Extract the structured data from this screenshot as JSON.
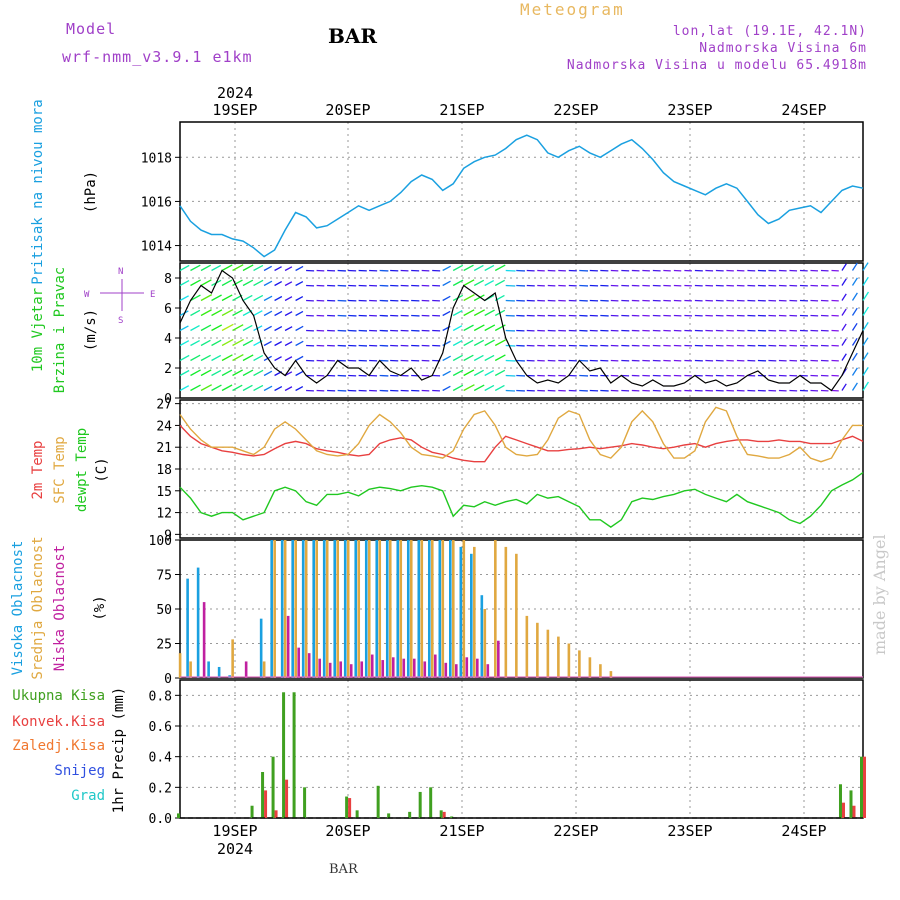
{
  "header": {
    "model_label": "Model",
    "model_name": "wrf-nmm_v3.9.1 e1km",
    "station": "BAR",
    "meteogram": "Meteogram",
    "lonlat": "lon,lat (19.1E, 42.1N)",
    "elevation": "Nadmorska Visina 6m",
    "model_elevation": "Nadmorska Visina u modelu 65.4918m"
  },
  "footer": {
    "station": "BAR",
    "credit": "made by Angel"
  },
  "colors": {
    "pressure": "#1aa0e0",
    "temp2m": "#e84040",
    "sfc": "#e0a840",
    "dewpt": "#20c820",
    "high_cloud": "#1aa0e0",
    "mid_cloud": "#e0a840",
    "low_cloud": "#c020a0",
    "total_precip": "#40a020",
    "convective": "#e84040",
    "frozen": "#f07830",
    "snow": "#3050e0",
    "graupel": "#20c8c8",
    "purple": "#a040c8"
  },
  "chart_data": [
    {
      "type": "line",
      "panel": "pressure",
      "ylabel": [
        "Pritisak na nivou mora",
        "(hPa)"
      ],
      "yticks": [
        1014,
        1016,
        1018
      ],
      "ylim": [
        1013.3,
        1019.6
      ],
      "x_start": "2024-09-18 12:00",
      "x_step_hours": 3,
      "series": [
        {
          "values": [
            1015.8,
            1015.1,
            1014.7,
            1014.5,
            1014.5,
            1014.3,
            1014.2,
            1013.9,
            1013.5,
            1013.8,
            1014.7,
            1015.5,
            1015.3,
            1014.8,
            1014.9,
            1015.2,
            1015.5,
            1015.8,
            1015.6,
            1015.8,
            1016.0,
            1016.4,
            1016.9,
            1017.2,
            1017.0,
            1016.5,
            1016.8,
            1017.5,
            1017.8,
            1018.0,
            1018.1,
            1018.4,
            1018.8,
            1019.0,
            1018.8,
            1018.2,
            1018.0,
            1018.3,
            1018.5,
            1018.2,
            1018.0,
            1018.3,
            1018.6,
            1018.8,
            1018.4,
            1017.9,
            1017.3,
            1016.9,
            1016.7,
            1016.5,
            1016.3,
            1016.6,
            1016.8,
            1016.6,
            1016.0,
            1015.4,
            1015.0,
            1015.2,
            1015.6,
            1015.7,
            1015.8,
            1015.5,
            1016.0,
            1016.5,
            1016.7,
            1016.6
          ]
        }
      ]
    },
    {
      "type": "line",
      "panel": "wind",
      "ylabel": [
        "10m Vjetar",
        "Brzina i Pravac",
        "(m/s)"
      ],
      "compass": {
        "north": "N",
        "south": "S",
        "west": "W",
        "east": "E"
      },
      "yticks": [
        0,
        2,
        4,
        6,
        8
      ],
      "ylim": [
        0,
        9
      ],
      "series": [
        {
          "name": "10m wind speed",
          "values": [
            5.0,
            6.5,
            7.5,
            7.0,
            8.5,
            8.0,
            6.5,
            5.5,
            3.0,
            2.0,
            1.5,
            2.5,
            1.5,
            1.0,
            1.5,
            2.5,
            2.0,
            2.0,
            1.5,
            2.5,
            1.8,
            1.5,
            2.0,
            1.2,
            1.5,
            3.0,
            6.0,
            7.5,
            7.0,
            6.5,
            7.0,
            4.0,
            2.5,
            1.5,
            1.0,
            1.2,
            1.0,
            1.5,
            2.5,
            1.8,
            2.0,
            1.0,
            1.5,
            1.0,
            0.8,
            1.2,
            0.8,
            0.8,
            1.0,
            1.5,
            1.0,
            1.2,
            0.8,
            1.0,
            1.5,
            1.8,
            1.2,
            1.0,
            1.0,
            1.5,
            1.0,
            1.0,
            0.5,
            1.5,
            3.0,
            4.5
          ]
        }
      ]
    },
    {
      "type": "line",
      "panel": "temperature",
      "ylabel": [
        "2m Temp",
        "SFC Temp",
        "dewpt Temp",
        "(C)"
      ],
      "yticks": [
        9,
        12,
        15,
        18,
        21,
        24,
        27
      ],
      "ylim": [
        8.5,
        27.5
      ],
      "series": [
        {
          "name": "2m Temp",
          "values": [
            24.0,
            22.5,
            21.5,
            21.0,
            20.5,
            20.3,
            20.0,
            19.8,
            20.0,
            20.8,
            21.5,
            21.8,
            21.5,
            20.8,
            20.5,
            20.3,
            20.0,
            19.8,
            20.0,
            21.5,
            22.0,
            22.3,
            22.0,
            21.0,
            20.3,
            20.0,
            19.5,
            19.2,
            19.0,
            19.0,
            21.0,
            22.5,
            22.0,
            21.5,
            21.0,
            20.5,
            20.5,
            20.7,
            20.8,
            21.0,
            20.8,
            21.0,
            21.2,
            21.5,
            21.3,
            21.0,
            20.8,
            21.0,
            21.3,
            21.5,
            21.0,
            21.5,
            21.8,
            22.0,
            22.0,
            21.8,
            21.8,
            22.0,
            21.8,
            21.8,
            21.5,
            21.5,
            21.5,
            22.0,
            22.5,
            21.8
          ]
        },
        {
          "name": "SFC Temp",
          "values": [
            25.5,
            23.5,
            22.0,
            21.0,
            21.0,
            21.0,
            20.5,
            20.0,
            21.0,
            23.5,
            24.5,
            23.5,
            22.0,
            20.5,
            20.0,
            19.8,
            20.0,
            21.5,
            24.0,
            25.5,
            24.5,
            23.0,
            21.0,
            20.0,
            19.8,
            19.5,
            20.5,
            23.5,
            25.5,
            26.0,
            24.0,
            21.0,
            20.0,
            19.8,
            20.0,
            22.0,
            25.0,
            26.0,
            25.5,
            22.0,
            20.0,
            19.5,
            21.0,
            24.5,
            26.0,
            24.5,
            21.5,
            19.5,
            19.5,
            20.5,
            24.5,
            26.5,
            26.0,
            22.5,
            20.0,
            19.8,
            19.5,
            19.5,
            20.0,
            21.0,
            19.5,
            19.0,
            19.5,
            22.0,
            24.0,
            24.0
          ]
        },
        {
          "name": "dewpt Temp",
          "values": [
            15.5,
            14.0,
            12.0,
            11.5,
            12.0,
            12.0,
            11.0,
            11.5,
            12.0,
            15.0,
            15.5,
            15.0,
            13.5,
            13.0,
            14.5,
            14.5,
            14.8,
            14.3,
            15.2,
            15.5,
            15.3,
            15.0,
            15.5,
            15.7,
            15.5,
            15.0,
            11.5,
            13.0,
            12.8,
            13.5,
            13.0,
            13.5,
            13.8,
            13.2,
            14.5,
            14.0,
            14.2,
            13.5,
            12.8,
            11.0,
            11.0,
            10.0,
            11.0,
            13.5,
            14.0,
            13.8,
            14.2,
            14.5,
            15.0,
            15.2,
            14.5,
            14.0,
            13.5,
            14.5,
            13.5,
            13.0,
            12.5,
            12.0,
            11.0,
            10.5,
            11.5,
            13.0,
            15.0,
            15.8,
            16.5,
            17.5
          ]
        }
      ]
    },
    {
      "type": "bar",
      "panel": "cloud",
      "ylabel": [
        "Visoka Oblacnost",
        "Srednja Oblacnost",
        "Niska Oblacnost",
        "(%)"
      ],
      "yticks": [
        0,
        25,
        50,
        75,
        100
      ],
      "ylim": [
        0,
        100
      ],
      "series": [
        {
          "name": "Visoka Oblacnost",
          "values": [
            0,
            72,
            80,
            12,
            8,
            2,
            0,
            0,
            43,
            100,
            100,
            100,
            100,
            100,
            100,
            100,
            100,
            100,
            100,
            100,
            100,
            100,
            100,
            100,
            100,
            100,
            100,
            95,
            90,
            60,
            0,
            0,
            0,
            0,
            0,
            0,
            0,
            0,
            0,
            0,
            0,
            0,
            0,
            0,
            0,
            0,
            0,
            0,
            0,
            0,
            0,
            0,
            0,
            0,
            0,
            0,
            0,
            0,
            0,
            0,
            0,
            0,
            0,
            0,
            0,
            0
          ]
        },
        {
          "name": "Srednja Oblacnost",
          "values": [
            18,
            12,
            0,
            0,
            0,
            28,
            0,
            0,
            12,
            100,
            100,
            100,
            100,
            100,
            100,
            100,
            100,
            100,
            100,
            100,
            100,
            100,
            100,
            100,
            100,
            100,
            100,
            100,
            95,
            50,
            100,
            95,
            90,
            45,
            40,
            35,
            30,
            25,
            20,
            15,
            10,
            5,
            0,
            0,
            0,
            0,
            0,
            0,
            0,
            0,
            0,
            0,
            0,
            0,
            0,
            0,
            0,
            0,
            0,
            0,
            0,
            0,
            0,
            0,
            0,
            0
          ]
        },
        {
          "name": "Niska Oblacnost",
          "values": [
            0,
            0,
            55,
            0,
            0,
            0,
            12,
            0,
            0,
            0,
            45,
            22,
            18,
            14,
            11,
            12,
            10,
            12,
            17,
            13,
            15,
            14,
            14,
            12,
            17,
            11,
            10,
            15,
            14,
            10,
            27,
            0,
            0,
            0,
            0,
            0,
            0,
            0,
            0,
            0,
            0,
            0,
            0,
            0,
            0,
            0,
            0,
            0,
            0,
            0,
            0,
            0,
            0,
            0,
            0,
            0,
            0,
            0,
            0,
            0,
            0,
            0,
            0,
            0,
            0,
            0
          ]
        }
      ]
    },
    {
      "type": "bar",
      "panel": "precip",
      "ylabel": [
        "1hr Precip (mm)"
      ],
      "legend": [
        "Ukupna Kisa",
        "Konvek.Kisa",
        "Zaledj.Kisa",
        "Snijeg",
        "Grad"
      ],
      "yticks": [
        0.0,
        0.2,
        0.4,
        0.6,
        0.8
      ],
      "ylim": [
        0,
        0.9
      ],
      "series": [
        {
          "name": "Ukupna Kisa",
          "values": [
            0.03,
            0,
            0,
            0,
            0,
            0,
            0,
            0.08,
            0.3,
            0.4,
            0.82,
            0.82,
            0.2,
            0,
            0,
            0,
            0.14,
            0.05,
            0,
            0.21,
            0.03,
            0,
            0.04,
            0.17,
            0.2,
            0.05,
            0.01,
            0,
            0,
            0,
            0,
            0,
            0,
            0,
            0,
            0,
            0,
            0,
            0,
            0,
            0,
            0,
            0,
            0,
            0,
            0,
            0,
            0,
            0,
            0,
            0,
            0,
            0,
            0,
            0,
            0,
            0,
            0,
            0,
            0,
            0,
            0,
            0,
            0.22,
            0.18,
            0.4
          ]
        },
        {
          "name": "Konvek.Kisa",
          "values": [
            0,
            0,
            0,
            0,
            0,
            0,
            0,
            0,
            0.18,
            0.05,
            0.25,
            0,
            0,
            0,
            0,
            0,
            0.13,
            0,
            0,
            0,
            0,
            0,
            0,
            0,
            0,
            0.04,
            0,
            0,
            0,
            0,
            0,
            0,
            0,
            0,
            0,
            0,
            0,
            0,
            0,
            0,
            0,
            0,
            0,
            0,
            0,
            0,
            0,
            0,
            0,
            0,
            0,
            0,
            0,
            0,
            0,
            0,
            0,
            0,
            0,
            0,
            0,
            0,
            0,
            0.1,
            0.08,
            0.4
          ]
        }
      ]
    }
  ],
  "x_axis": {
    "top_labels": [
      "19SEP",
      "20SEP",
      "21SEP",
      "22SEP",
      "23SEP",
      "24SEP"
    ],
    "bottom_labels": [
      "19SEP",
      "20SEP",
      "21SEP",
      "22SEP",
      "23SEP",
      "24SEP"
    ],
    "year": "2024"
  }
}
